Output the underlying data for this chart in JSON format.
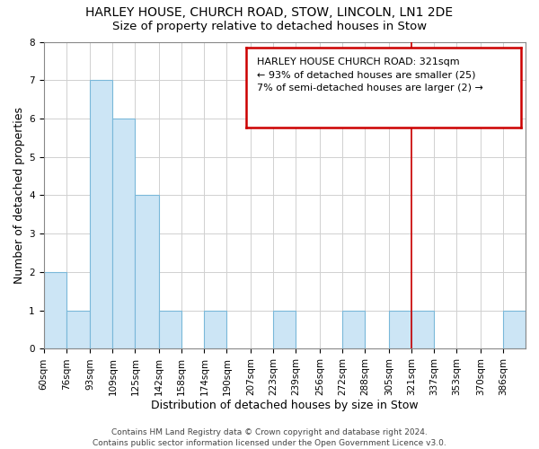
{
  "title": "HARLEY HOUSE, CHURCH ROAD, STOW, LINCOLN, LN1 2DE",
  "subtitle": "Size of property relative to detached houses in Stow",
  "xlabel": "Distribution of detached houses by size in Stow",
  "ylabel": "Number of detached properties",
  "bin_labels": [
    "60sqm",
    "76sqm",
    "93sqm",
    "109sqm",
    "125sqm",
    "142sqm",
    "158sqm",
    "174sqm",
    "190sqm",
    "207sqm",
    "223sqm",
    "239sqm",
    "256sqm",
    "272sqm",
    "288sqm",
    "305sqm",
    "321sqm",
    "337sqm",
    "353sqm",
    "370sqm",
    "386sqm"
  ],
  "bin_edges": [
    60,
    76,
    93,
    109,
    125,
    142,
    158,
    174,
    190,
    207,
    223,
    239,
    256,
    272,
    288,
    305,
    321,
    337,
    353,
    370,
    386
  ],
  "bar_heights": [
    2,
    1,
    7,
    6,
    4,
    1,
    0,
    1,
    0,
    0,
    1,
    0,
    0,
    1,
    0,
    1,
    1,
    0,
    0,
    0,
    1
  ],
  "bar_color": "#cce5f5",
  "bar_edgecolor": "#7ab8d9",
  "grid_color": "#d0d0d0",
  "reference_line_x": 321,
  "reference_line_color": "#cc0000",
  "ylim": [
    0,
    8
  ],
  "legend_title": "HARLEY HOUSE CHURCH ROAD: 321sqm",
  "legend_line1": "← 93% of detached houses are smaller (25)",
  "legend_line2": "7% of semi-detached houses are larger (2) →",
  "footer_line1": "Contains HM Land Registry data © Crown copyright and database right 2024.",
  "footer_line2": "Contains public sector information licensed under the Open Government Licence v3.0.",
  "background_color": "#ffffff",
  "title_fontsize": 10,
  "subtitle_fontsize": 9.5,
  "axis_label_fontsize": 9,
  "tick_fontsize": 7.5,
  "legend_fontsize": 8,
  "footer_fontsize": 6.5
}
